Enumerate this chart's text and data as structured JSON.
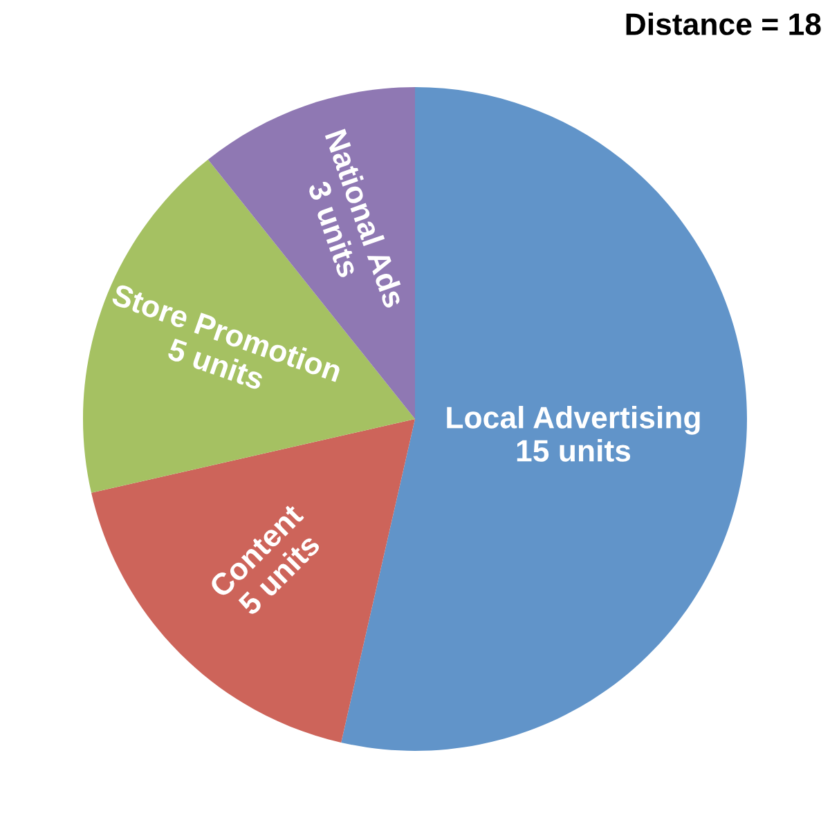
{
  "chart_data": {
    "type": "pie",
    "categories": [
      "Local Advertising",
      "Content",
      "Store Promotion",
      "National Ads"
    ],
    "values": [
      15,
      5,
      5,
      3
    ],
    "value_labels": [
      "15 units",
      "5 units",
      "5 units",
      "3 units"
    ],
    "colors": [
      "#6194c9",
      "#cd645a",
      "#a5c162",
      "#8f78b3"
    ],
    "annotations": [
      "Distance = 18"
    ],
    "legend": false
  }
}
